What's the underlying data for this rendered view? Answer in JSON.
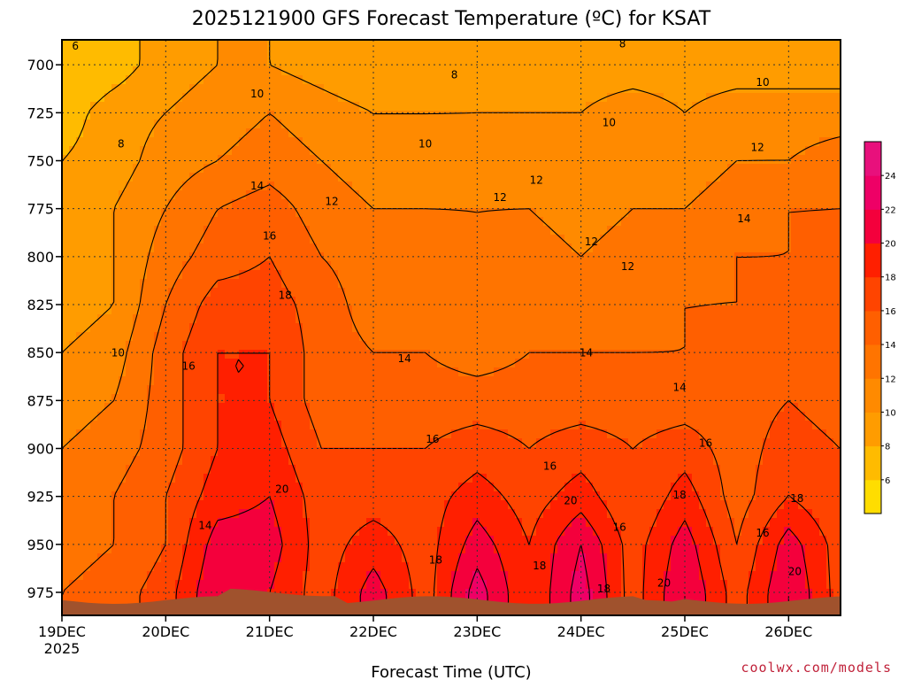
{
  "chart_data": {
    "type": "heatmap",
    "title": "2025121900 GFS Forecast Temperature (ºC) for KSAT",
    "xlabel": "Forecast Time (UTC)",
    "ylabel": "",
    "credit": "coolwx.com/models",
    "x_ticks": [
      "19DEC",
      "20DEC",
      "21DEC",
      "22DEC",
      "23DEC",
      "24DEC",
      "25DEC",
      "26DEC"
    ],
    "x_year": "2025",
    "y_ticks": [
      700,
      725,
      750,
      775,
      800,
      825,
      850,
      875,
      900,
      925,
      950,
      975
    ],
    "ylim": [
      987,
      687
    ],
    "xlim": [
      0,
      7.5
    ],
    "colorbar": {
      "levels": [
        4,
        6,
        8,
        10,
        12,
        14,
        16,
        18,
        20,
        22,
        24,
        26
      ],
      "labels": [
        "6",
        "8",
        "10",
        "12",
        "14",
        "16",
        "18",
        "20",
        "22",
        "24"
      ],
      "colors": [
        "#ffdd00",
        "#ffbb00",
        "#ff9c00",
        "#ff8a00",
        "#ff7400",
        "#ff5f00",
        "#ff4400",
        "#ff1f00",
        "#f4003c",
        "#ee0066",
        "#e8107c"
      ]
    },
    "surface_color": "#a0522d",
    "levels": [
      700,
      725,
      750,
      775,
      800,
      825,
      850,
      875,
      900,
      925,
      950,
      975
    ],
    "times": [
      0,
      0.5,
      1,
      1.5,
      2,
      2.5,
      3,
      3.5,
      4,
      4.5,
      5,
      5.5,
      6,
      6.5,
      7,
      7.5
    ],
    "temperature": [
      [
        6,
        7,
        9,
        10,
        10,
        9,
        8,
        8,
        9,
        9,
        9,
        9,
        9,
        9,
        9,
        9
      ],
      [
        7,
        9,
        10,
        11,
        12,
        11,
        10,
        10,
        10,
        10,
        10,
        11,
        10,
        11,
        11,
        11
      ],
      [
        8,
        9,
        11,
        12,
        13,
        12,
        11,
        11,
        11,
        11,
        11,
        11,
        11,
        12,
        12,
        13
      ],
      [
        8,
        10,
        12,
        14,
        15,
        13,
        12,
        12,
        12,
        12,
        11,
        12,
        12,
        13,
        14,
        14
      ],
      [
        8,
        10,
        13,
        15,
        16,
        14,
        13,
        13,
        12,
        13,
        12,
        13,
        13,
        14,
        14,
        15
      ],
      [
        9,
        10,
        14,
        17,
        17,
        15,
        13,
        13,
        12,
        13,
        13,
        13,
        14,
        14,
        15,
        15
      ],
      [
        10,
        11,
        15,
        18,
        18,
        15,
        14,
        14,
        13,
        14,
        14,
        14,
        14,
        15,
        15,
        15
      ],
      [
        11,
        12,
        15,
        18,
        18,
        15,
        15,
        15,
        15,
        15,
        15,
        15,
        15,
        15,
        16,
        15
      ],
      [
        12,
        13,
        15,
        18,
        19,
        16,
        16,
        16,
        17,
        16,
        17,
        16,
        17,
        15,
        17,
        16
      ],
      [
        13,
        14,
        16,
        19,
        20,
        17,
        17,
        17,
        19,
        17,
        19,
        16,
        19,
        15,
        18,
        16
      ],
      [
        13,
        14,
        16,
        21,
        21,
        17,
        19,
        17,
        21,
        18,
        22,
        17,
        21,
        16,
        21,
        17
      ],
      [
        14,
        15,
        17,
        22,
        20,
        17,
        21,
        17,
        23,
        18,
        23,
        17,
        22,
        17,
        22,
        17
      ]
    ],
    "contour_labels": [
      {
        "text": "6",
        "t": 0.13,
        "p": 692
      },
      {
        "text": "8",
        "t": 0.57,
        "p": 743
      },
      {
        "text": "10",
        "t": 0.54,
        "p": 852
      },
      {
        "text": "16",
        "t": 1.22,
        "p": 859
      },
      {
        "text": "14",
        "t": 1.38,
        "p": 942
      },
      {
        "text": "10",
        "t": 1.88,
        "p": 717
      },
      {
        "text": "14",
        "t": 1.88,
        "p": 765
      },
      {
        "text": "16",
        "t": 2.0,
        "p": 791
      },
      {
        "text": "18",
        "t": 2.15,
        "p": 822
      },
      {
        "text": "20",
        "t": 2.12,
        "p": 923
      },
      {
        "text": "8",
        "t": 3.78,
        "p": 707
      },
      {
        "text": "10",
        "t": 3.5,
        "p": 743
      },
      {
        "text": "12",
        "t": 2.6,
        "p": 773
      },
      {
        "text": "12",
        "t": 4.22,
        "p": 771
      },
      {
        "text": "12",
        "t": 4.57,
        "p": 762
      },
      {
        "text": "12",
        "t": 5.1,
        "p": 794
      },
      {
        "text": "12",
        "t": 5.45,
        "p": 807
      },
      {
        "text": "14",
        "t": 3.3,
        "p": 855
      },
      {
        "text": "14",
        "t": 5.05,
        "p": 852
      },
      {
        "text": "14",
        "t": 5.95,
        "p": 870
      },
      {
        "text": "16",
        "t": 3.57,
        "p": 897
      },
      {
        "text": "16",
        "t": 4.7,
        "p": 911
      },
      {
        "text": "16",
        "t": 6.2,
        "p": 899
      },
      {
        "text": "18",
        "t": 3.6,
        "p": 960
      },
      {
        "text": "18",
        "t": 4.6,
        "p": 963
      },
      {
        "text": "18",
        "t": 5.22,
        "p": 975
      },
      {
        "text": "18",
        "t": 5.95,
        "p": 926
      },
      {
        "text": "18",
        "t": 7.08,
        "p": 928
      },
      {
        "text": "20",
        "t": 4.9,
        "p": 929
      },
      {
        "text": "20",
        "t": 5.8,
        "p": 972
      },
      {
        "text": "20",
        "t": 7.06,
        "p": 966
      },
      {
        "text": "16",
        "t": 5.37,
        "p": 943
      },
      {
        "text": "16",
        "t": 6.75,
        "p": 946
      },
      {
        "text": "10",
        "t": 5.27,
        "p": 732
      },
      {
        "text": "10",
        "t": 6.75,
        "p": 711
      },
      {
        "text": "12",
        "t": 6.7,
        "p": 745
      },
      {
        "text": "14",
        "t": 6.57,
        "p": 782
      },
      {
        "text": "8",
        "t": 5.4,
        "p": 691
      }
    ]
  }
}
